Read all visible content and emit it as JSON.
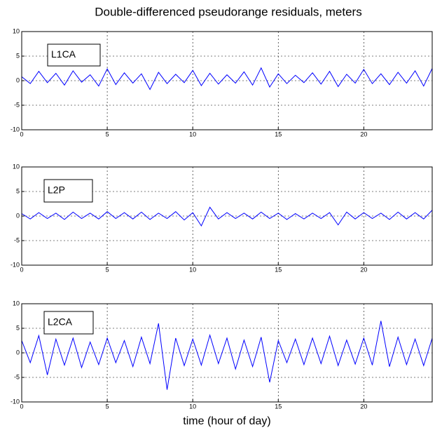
{
  "chart_data": [
    {
      "type": "line",
      "title": "Double-differenced pseudorange residuals, meters",
      "x": [
        0,
        0.5,
        1,
        1.5,
        2,
        2.5,
        3,
        3.5,
        4,
        4.5,
        5,
        5.5,
        6,
        6.5,
        7,
        7.5,
        8,
        8.5,
        9,
        9.5,
        10,
        10.5,
        11,
        11.5,
        12,
        12.5,
        13,
        13.5,
        14,
        14.5,
        15,
        15.5,
        16,
        16.5,
        17,
        17.5,
        18,
        18.5,
        19,
        19.5,
        20,
        20.5,
        21,
        21.5,
        22,
        22.5,
        23,
        23.5,
        24
      ],
      "series": [
        {
          "name": "L1CA",
          "color": "#0000ff",
          "values": [
            0.8,
            -0.6,
            1.9,
            -0.4,
            1.5,
            -0.9,
            2.0,
            -0.3,
            1.2,
            -1.1,
            2.4,
            -0.8,
            1.6,
            -0.5,
            1.4,
            -1.8,
            1.7,
            -0.6,
            1.3,
            -0.4,
            2.1,
            -1.0,
            1.5,
            -0.7,
            1.2,
            -0.5,
            1.8,
            -0.9,
            2.6,
            -1.3,
            1.4,
            -0.6,
            1.1,
            -0.4,
            1.6,
            -0.7,
            1.9,
            -1.2,
            1.3,
            -0.5,
            2.3,
            -0.6,
            1.4,
            -0.8,
            1.7,
            -0.5,
            2.0,
            -1.1,
            2.5
          ]
        }
      ],
      "xlim": [
        0,
        24
      ],
      "xticks": [
        0,
        5,
        10,
        15,
        20
      ],
      "ylim": [
        -10,
        10
      ],
      "yticks": [
        -10,
        -5,
        0,
        5,
        10
      ],
      "grid": true,
      "legend": "upper left"
    },
    {
      "type": "line",
      "x": [
        0,
        0.5,
        1,
        1.5,
        2,
        2.5,
        3,
        3.5,
        4,
        4.5,
        5,
        5.5,
        6,
        6.5,
        7,
        7.5,
        8,
        8.5,
        9,
        9.5,
        10,
        10.5,
        11,
        11.5,
        12,
        12.5,
        13,
        13.5,
        14,
        14.5,
        15,
        15.5,
        16,
        16.5,
        17,
        17.5,
        18,
        18.5,
        19,
        19.5,
        20,
        20.5,
        21,
        21.5,
        22,
        22.5,
        23,
        23.5,
        24
      ],
      "series": [
        {
          "name": "L2P",
          "color": "#0000ff",
          "values": [
            0.5,
            -0.6,
            0.7,
            -0.5,
            0.6,
            -0.7,
            0.8,
            -0.5,
            0.6,
            -0.6,
            0.9,
            -0.5,
            0.7,
            -0.6,
            0.8,
            -0.7,
            0.6,
            -0.5,
            0.9,
            -0.8,
            0.7,
            -2.0,
            1.8,
            -0.6,
            0.7,
            -0.5,
            0.6,
            -0.6,
            0.8,
            -0.5,
            0.6,
            -0.7,
            0.5,
            -0.6,
            0.6,
            -0.5,
            0.7,
            -1.8,
            0.8,
            -0.6,
            0.7,
            -0.5,
            0.6,
            -0.7,
            0.8,
            -0.6,
            0.7,
            -0.6,
            1.2
          ]
        }
      ],
      "xlim": [
        0,
        24
      ],
      "xticks": [
        0,
        5,
        10,
        15,
        20
      ],
      "ylim": [
        -10,
        10
      ],
      "yticks": [
        -10,
        -5,
        0,
        5,
        10
      ],
      "grid": true,
      "legend": "upper left"
    },
    {
      "type": "line",
      "x_label": "time (hour of day)",
      "x": [
        0,
        0.5,
        1,
        1.5,
        2,
        2.5,
        3,
        3.5,
        4,
        4.5,
        5,
        5.5,
        6,
        6.5,
        7,
        7.5,
        8,
        8.5,
        9,
        9.5,
        10,
        10.5,
        11,
        11.5,
        12,
        12.5,
        13,
        13.5,
        14,
        14.5,
        15,
        15.5,
        16,
        16.5,
        17,
        17.5,
        18,
        18.5,
        19,
        19.5,
        20,
        20.5,
        21,
        21.5,
        22,
        22.5,
        23,
        23.5,
        24
      ],
      "series": [
        {
          "name": "L2CA",
          "color": "#0000ff",
          "values": [
            2.5,
            -2.0,
            3.5,
            -4.5,
            2.8,
            -2.5,
            3.0,
            -3.0,
            2.2,
            -2.4,
            3.0,
            -2.0,
            2.5,
            -2.8,
            3.2,
            -2.2,
            6.0,
            -7.5,
            3.0,
            -2.6,
            2.8,
            -2.5,
            3.6,
            -2.2,
            3.0,
            -3.3,
            2.6,
            -2.8,
            3.2,
            -6.0,
            2.5,
            -2.0,
            2.8,
            -2.4,
            3.0,
            -2.2,
            3.4,
            -2.6,
            2.6,
            -2.3,
            3.0,
            -2.5,
            6.5,
            -2.8,
            3.2,
            -2.4,
            2.8,
            -2.6,
            3.0
          ]
        }
      ],
      "xlim": [
        0,
        24
      ],
      "xticks": [
        0,
        5,
        10,
        15,
        20
      ],
      "ylim": [
        -10,
        10
      ],
      "yticks": [
        -10,
        -5,
        0,
        5,
        10
      ],
      "grid": true,
      "legend": "upper left"
    }
  ]
}
